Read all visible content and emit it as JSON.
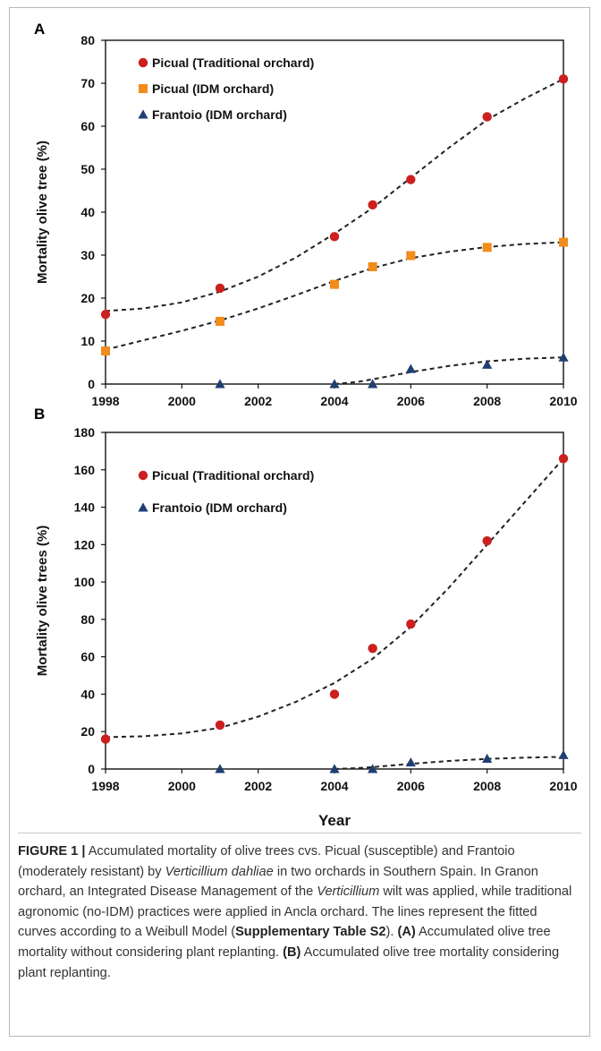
{
  "chart_data": [
    {
      "type": "scatter",
      "panel": "A",
      "title": "",
      "xlabel": "",
      "ylabel": "Mortality olive tree (%)",
      "xlim": [
        1998,
        2010
      ],
      "ylim": [
        0,
        80
      ],
      "xticks": [
        "1998",
        "2000",
        "2002",
        "2004",
        "2006",
        "2008",
        "2010"
      ],
      "yticks": [
        "0",
        "10",
        "20",
        "30",
        "40",
        "50",
        "60",
        "70",
        "80"
      ],
      "legend_position": "top-left",
      "series": [
        {
          "name": "Picual (Traditional orchard)",
          "marker": "circle",
          "color": "#cc1f1f",
          "points": [
            [
              1998,
              16.2
            ],
            [
              2001,
              22.3
            ],
            [
              2004,
              34.3
            ],
            [
              2005,
              41.7
            ],
            [
              2006,
              47.6
            ],
            [
              2008,
              62.2
            ],
            [
              2010,
              71.0
            ]
          ],
          "fitted": [
            [
              1998,
              17.0
            ],
            [
              1999,
              17.6
            ],
            [
              2000,
              19.0
            ],
            [
              2001,
              21.5
            ],
            [
              2002,
              25.0
            ],
            [
              2003,
              29.5
            ],
            [
              2004,
              35.0
            ],
            [
              2005,
              41.0
            ],
            [
              2006,
              48.0
            ],
            [
              2007,
              55.0
            ],
            [
              2008,
              61.5
            ],
            [
              2009,
              66.5
            ],
            [
              2010,
              71.0
            ]
          ]
        },
        {
          "name": "Picual (IDM orchard)",
          "marker": "square",
          "color": "#f28c1c",
          "points": [
            [
              1998,
              7.7
            ],
            [
              2001,
              14.6
            ],
            [
              2004,
              23.2
            ],
            [
              2005,
              27.3
            ],
            [
              2006,
              29.9
            ],
            [
              2008,
              31.8
            ],
            [
              2010,
              33.0
            ]
          ],
          "fitted": [
            [
              1998,
              8.0
            ],
            [
              1999,
              10.2
            ],
            [
              2000,
              12.4
            ],
            [
              2001,
              14.8
            ],
            [
              2002,
              17.6
            ],
            [
              2003,
              20.7
            ],
            [
              2004,
              24.0
            ],
            [
              2005,
              27.0
            ],
            [
              2006,
              29.3
            ],
            [
              2007,
              30.8
            ],
            [
              2008,
              31.9
            ],
            [
              2009,
              32.6
            ],
            [
              2010,
              33.0
            ]
          ]
        },
        {
          "name": "Frantoio (IDM orchard)",
          "marker": "triangle",
          "color": "#1f3f73",
          "points": [
            [
              2001,
              0
            ],
            [
              2004,
              0
            ],
            [
              2005,
              0
            ],
            [
              2006,
              3.5
            ],
            [
              2008,
              4.5
            ],
            [
              2010,
              6.2
            ]
          ],
          "fitted": [
            [
              2004,
              0
            ],
            [
              2004.6,
              0.5
            ],
            [
              2005,
              1.1
            ],
            [
              2006,
              2.8
            ],
            [
              2007,
              4.2
            ],
            [
              2008,
              5.3
            ],
            [
              2009,
              5.9
            ],
            [
              2010,
              6.2
            ]
          ]
        }
      ]
    },
    {
      "type": "scatter",
      "panel": "B",
      "title": "",
      "xlabel": "Year",
      "ylabel": "Mortality olive trees (%)",
      "xlim": [
        1998,
        2010
      ],
      "ylim": [
        0,
        180
      ],
      "xticks": [
        "1998",
        "2000",
        "2002",
        "2004",
        "2006",
        "2008",
        "2010"
      ],
      "yticks": [
        "0",
        "20",
        "40",
        "60",
        "80",
        "100",
        "120",
        "140",
        "160",
        "180"
      ],
      "legend_position": "top-left",
      "series": [
        {
          "name": "Picual (Traditional orchard)",
          "marker": "circle",
          "color": "#cc1f1f",
          "points": [
            [
              1998,
              16.0
            ],
            [
              2001,
              23.5
            ],
            [
              2004,
              40.0
            ],
            [
              2005,
              64.5
            ],
            [
              2006,
              77.5
            ],
            [
              2008,
              122.0
            ],
            [
              2010,
              166.0
            ]
          ],
          "fitted": [
            [
              1998,
              17.0
            ],
            [
              1999,
              17.5
            ],
            [
              2000,
              19.0
            ],
            [
              2001,
              22.0
            ],
            [
              2002,
              28.0
            ],
            [
              2003,
              36.0
            ],
            [
              2004,
              46.0
            ],
            [
              2005,
              59.0
            ],
            [
              2006,
              76.0
            ],
            [
              2007,
              97.0
            ],
            [
              2008,
              120.0
            ],
            [
              2009,
              143.0
            ],
            [
              2010,
              166.0
            ]
          ]
        },
        {
          "name": "Frantoio (IDM orchard)",
          "marker": "triangle",
          "color": "#1f3f73",
          "points": [
            [
              2001,
              0
            ],
            [
              2004,
              0
            ],
            [
              2005,
              0
            ],
            [
              2006,
              3.5
            ],
            [
              2008,
              5.5
            ],
            [
              2010,
              7.5
            ]
          ],
          "fitted": [
            [
              2004,
              0
            ],
            [
              2004.6,
              0.5
            ],
            [
              2005,
              1.0
            ],
            [
              2006,
              2.8
            ],
            [
              2007,
              4.3
            ],
            [
              2008,
              5.4
            ],
            [
              2009,
              6.1
            ],
            [
              2010,
              6.5
            ]
          ]
        }
      ]
    }
  ],
  "caption": {
    "figure_label": "FIGURE 1 |",
    "text_1": " Accumulated mortality of olive trees cvs. Picual (susceptible) and Frantoio (moderately resistant) by ",
    "species": "Verticillium dahliae",
    "text_2": " in two orchards in Southern Spain. In Granon orchard, an Integrated Disease Management of the ",
    "genus": "Verticillium",
    "text_3": " wilt was applied, while traditional agronomic (no-IDM) practices were applied in Ancla orchard. The lines represent the fitted curves according to a Weibull Model (",
    "table_ref": "Supplementary Table S2",
    "text_4": "). ",
    "label_a": "(A)",
    "text_5": " Accumulated olive tree mortality without considering plant replanting. ",
    "label_b": "(B)",
    "text_6": " Accumulated olive tree mortality considering plant replanting."
  }
}
